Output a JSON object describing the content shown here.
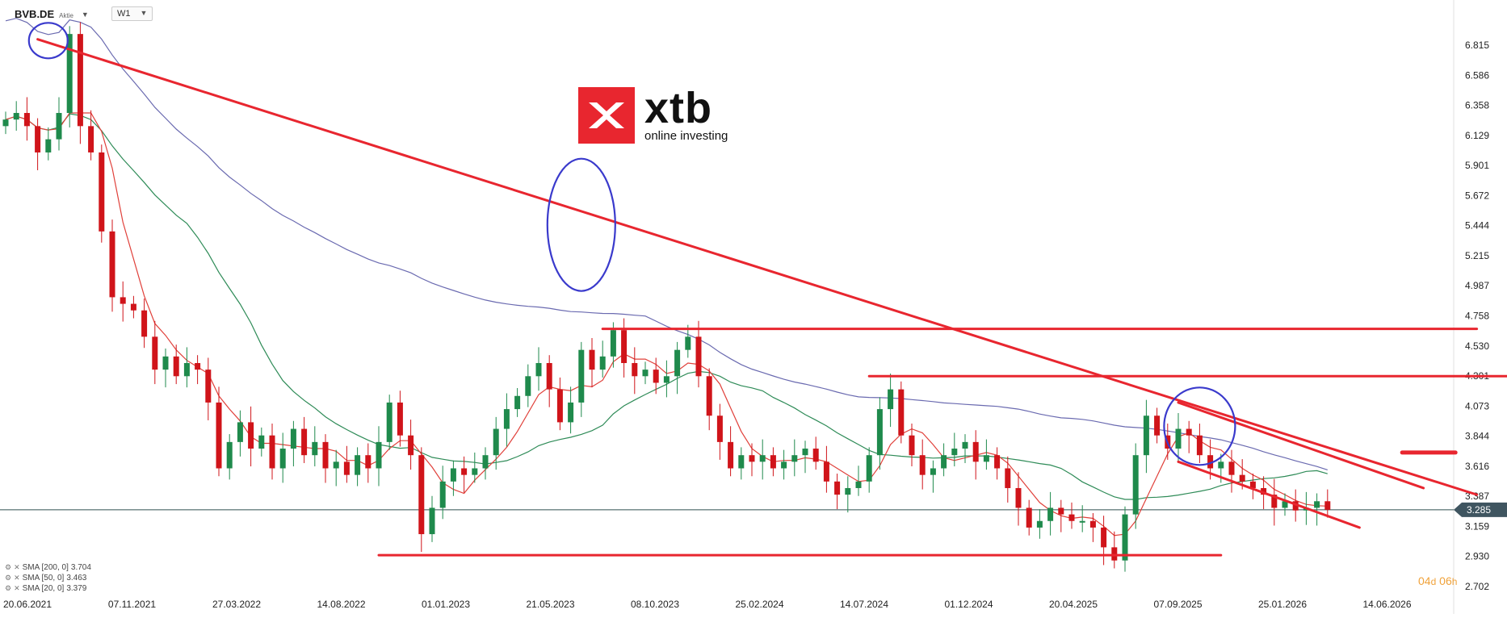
{
  "header": {
    "symbol": "BVB.DE",
    "symbol_type": "Aktie",
    "timeframe": "W1"
  },
  "logo": {
    "word": "xtb",
    "tagline": "online investing"
  },
  "legend": [
    {
      "label": "SMA [200, 0]",
      "value": "3.704",
      "color": "#5a5aa8"
    },
    {
      "label": "SMA [50, 0]",
      "value": "3.463",
      "color": "#2e8b57"
    },
    {
      "label": "SMA [20, 0]",
      "value": "3.379",
      "color": "#d92b2b"
    }
  ],
  "countdown": {
    "days": "04",
    "d_unit": "d",
    "hours": "06",
    "h_unit": "h"
  },
  "colors": {
    "bull": "#1f8a4c",
    "bear": "#d0141a",
    "trend": "#e8262f",
    "sma200": "#6a6ab0",
    "sma50": "#2e8b57",
    "sma20": "#e0403a",
    "circle": "#3a3acc",
    "price_line": "#2f4f4f"
  },
  "chart_data": {
    "type": "candlestick",
    "x_ticks": [
      "20.06.2021",
      "07.11.2021",
      "27.03.2022",
      "14.08.2022",
      "01.01.2023",
      "21.05.2023",
      "08.10.2023",
      "25.02.2024",
      "14.07.2024",
      "01.12.2024",
      "20.04.2025",
      "07.09.2025",
      "25.01.2026",
      "14.06.2026"
    ],
    "y_ticks": [
      "6.815",
      "6.586",
      "6.358",
      "6.129",
      "5.901",
      "5.672",
      "5.444",
      "5.215",
      "4.987",
      "4.758",
      "4.530",
      "4.301",
      "4.073",
      "3.844",
      "3.616",
      "3.387",
      "3.159",
      "2.930",
      "2.702"
    ],
    "ylim": [
      2.702,
      6.815
    ],
    "current_price": "3.285",
    "close_path": [
      [
        0,
        6.25
      ],
      [
        1,
        6.3
      ],
      [
        2,
        6.2
      ],
      [
        3,
        6.0
      ],
      [
        4,
        6.1
      ],
      [
        5,
        6.3
      ],
      [
        6,
        6.9
      ],
      [
        7,
        6.2
      ],
      [
        8,
        6.0
      ],
      [
        9,
        5.4
      ],
      [
        10,
        4.9
      ],
      [
        11,
        4.85
      ],
      [
        12,
        4.8
      ],
      [
        13,
        4.6
      ],
      [
        14,
        4.35
      ],
      [
        15,
        4.45
      ],
      [
        16,
        4.3
      ],
      [
        17,
        4.4
      ],
      [
        18,
        4.35
      ],
      [
        19,
        4.1
      ],
      [
        20,
        3.6
      ],
      [
        21,
        3.8
      ],
      [
        22,
        3.95
      ],
      [
        23,
        3.75
      ],
      [
        24,
        3.85
      ],
      [
        25,
        3.6
      ],
      [
        26,
        3.75
      ],
      [
        27,
        3.9
      ],
      [
        28,
        3.7
      ],
      [
        29,
        3.8
      ],
      [
        30,
        3.6
      ],
      [
        31,
        3.65
      ],
      [
        32,
        3.55
      ],
      [
        33,
        3.7
      ],
      [
        34,
        3.6
      ],
      [
        35,
        3.8
      ],
      [
        36,
        4.1
      ],
      [
        37,
        3.85
      ],
      [
        38,
        3.7
      ],
      [
        39,
        3.1
      ],
      [
        40,
        3.3
      ],
      [
        41,
        3.5
      ],
      [
        42,
        3.6
      ],
      [
        43,
        3.55
      ],
      [
        44,
        3.6
      ],
      [
        45,
        3.7
      ],
      [
        46,
        3.9
      ],
      [
        47,
        4.05
      ],
      [
        48,
        4.15
      ],
      [
        49,
        4.3
      ],
      [
        50,
        4.4
      ],
      [
        51,
        4.2
      ],
      [
        52,
        3.95
      ],
      [
        53,
        4.1
      ],
      [
        54,
        4.5
      ],
      [
        55,
        4.35
      ],
      [
        56,
        4.45
      ],
      [
        57,
        4.65
      ],
      [
        58,
        4.4
      ],
      [
        59,
        4.3
      ],
      [
        60,
        4.35
      ],
      [
        61,
        4.25
      ],
      [
        62,
        4.3
      ],
      [
        63,
        4.5
      ],
      [
        64,
        4.6
      ],
      [
        65,
        4.3
      ],
      [
        66,
        4.0
      ],
      [
        67,
        3.8
      ],
      [
        68,
        3.6
      ],
      [
        69,
        3.7
      ],
      [
        70,
        3.65
      ],
      [
        71,
        3.7
      ],
      [
        72,
        3.6
      ],
      [
        73,
        3.65
      ],
      [
        74,
        3.7
      ],
      [
        75,
        3.75
      ],
      [
        76,
        3.65
      ],
      [
        77,
        3.5
      ],
      [
        78,
        3.4
      ],
      [
        79,
        3.45
      ],
      [
        80,
        3.5
      ],
      [
        81,
        3.7
      ],
      [
        82,
        4.05
      ],
      [
        83,
        4.2
      ],
      [
        84,
        3.85
      ],
      [
        85,
        3.7
      ],
      [
        86,
        3.55
      ],
      [
        87,
        3.6
      ],
      [
        88,
        3.7
      ],
      [
        89,
        3.75
      ],
      [
        90,
        3.8
      ],
      [
        91,
        3.65
      ],
      [
        92,
        3.7
      ],
      [
        93,
        3.6
      ],
      [
        94,
        3.45
      ],
      [
        95,
        3.3
      ],
      [
        96,
        3.15
      ],
      [
        97,
        3.2
      ],
      [
        98,
        3.3
      ],
      [
        99,
        3.25
      ],
      [
        100,
        3.2
      ],
      [
        101,
        3.2
      ],
      [
        102,
        3.15
      ],
      [
        103,
        3.0
      ],
      [
        104,
        2.9
      ],
      [
        105,
        3.25
      ],
      [
        106,
        3.7
      ],
      [
        107,
        4.0
      ],
      [
        108,
        3.85
      ],
      [
        109,
        3.75
      ],
      [
        110,
        3.9
      ],
      [
        111,
        3.85
      ],
      [
        112,
        3.7
      ],
      [
        113,
        3.6
      ],
      [
        114,
        3.65
      ],
      [
        115,
        3.55
      ],
      [
        116,
        3.5
      ],
      [
        117,
        3.45
      ],
      [
        118,
        3.4
      ],
      [
        119,
        3.3
      ],
      [
        120,
        3.35
      ],
      [
        121,
        3.28
      ],
      [
        122,
        3.3
      ],
      [
        123,
        3.35
      ],
      [
        124,
        3.285
      ]
    ],
    "annotations": {
      "downtrend_line": {
        "from": [
          3,
          6.86
        ],
        "to": [
          138,
          3.4
        ]
      },
      "resistance_1": {
        "from": [
          56,
          4.66
        ],
        "to": [
          138,
          4.66
        ]
      },
      "resistance_2": {
        "from": [
          81,
          4.3
        ],
        "to": [
          142,
          4.3
        ]
      },
      "support": {
        "from": [
          35,
          2.94
        ],
        "to": [
          114,
          2.94
        ]
      },
      "channel_upper": {
        "from": [
          110,
          4.1
        ],
        "to": [
          133,
          3.45
        ]
      },
      "channel_lower": {
        "from": [
          110,
          3.65
        ],
        "to": [
          127,
          3.15
        ]
      },
      "short_mark": {
        "from": [
          131,
          3.72
        ],
        "to": [
          136,
          3.72
        ]
      },
      "circles": [
        {
          "x": 4,
          "y": 6.85
        },
        {
          "x": 54,
          "y": 5.45
        },
        {
          "x": 112,
          "y": 3.92
        }
      ]
    }
  }
}
